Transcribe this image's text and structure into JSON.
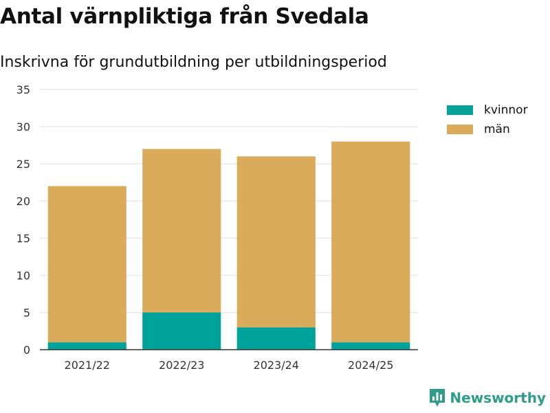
{
  "title": "Antal värnpliktiga från Svedala",
  "subtitle": "Inskrivna för grundutbildning per utbildningsperiod",
  "legend": {
    "items": [
      {
        "label": "kvinnor",
        "color": "#00a39a"
      },
      {
        "label": "män",
        "color": "#d9ab5b"
      }
    ]
  },
  "brand": {
    "name": "Newsworthy",
    "icon": "newsworthy-logo-icon",
    "color": "#2e9b8b"
  },
  "chart_data": {
    "type": "bar",
    "stacked": true,
    "title": "Antal värnpliktiga från Svedala",
    "subtitle": "Inskrivna för grundutbildning per utbildningsperiod",
    "xlabel": "",
    "ylabel": "",
    "categories": [
      "2021/22",
      "2022/23",
      "2023/24",
      "2024/25"
    ],
    "series": [
      {
        "name": "kvinnor",
        "color": "#00a39a",
        "values": [
          1,
          5,
          3,
          1
        ]
      },
      {
        "name": "män",
        "color": "#d9ab5b",
        "values": [
          21,
          22,
          23,
          27
        ]
      }
    ],
    "ylim": [
      0,
      35
    ],
    "yticks": [
      0,
      5,
      10,
      15,
      20,
      25,
      30,
      35
    ],
    "grid": true,
    "legend_position": "right"
  }
}
